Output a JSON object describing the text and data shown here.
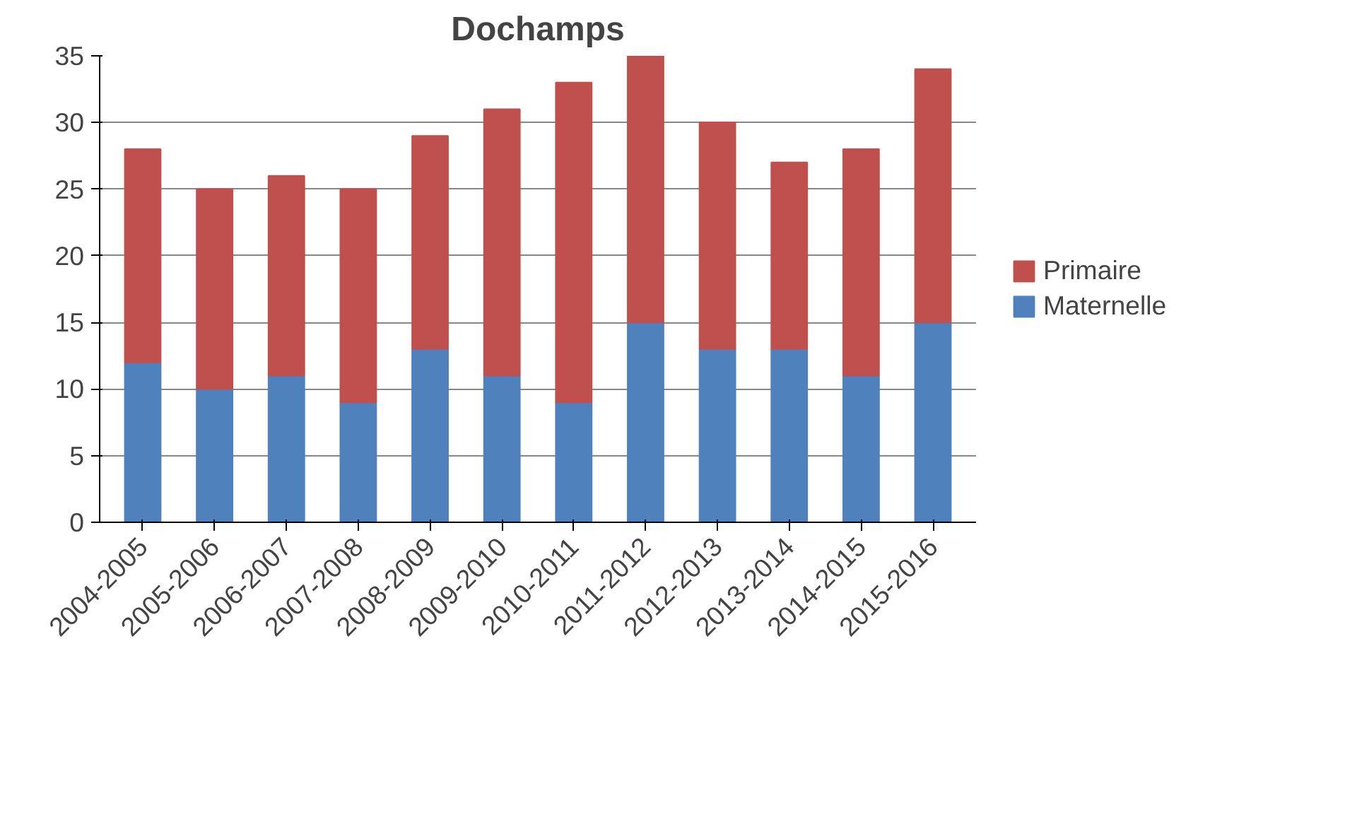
{
  "chart_data": {
    "type": "bar",
    "title": "Dochamps",
    "stacked": true,
    "categories": [
      "2004-2005",
      "2005-2006",
      "2006-2007",
      "2007-2008",
      "2008-2009",
      "2009-2010",
      "2010-2011",
      "2011-2012",
      "2012-2013",
      "2013-2014",
      "2014-2015",
      "2015-2016"
    ],
    "series": [
      {
        "name": "Maternelle",
        "color": "#4f81bd",
        "values": [
          12,
          10,
          11,
          9,
          13,
          11,
          9,
          15,
          13,
          13,
          11,
          15
        ]
      },
      {
        "name": "Primaire",
        "color": "#c0504d",
        "values": [
          16,
          15,
          15,
          16,
          16,
          20,
          24,
          20,
          17,
          14,
          17,
          19
        ]
      }
    ],
    "ylim": [
      0,
      35
    ],
    "yticks": [
      0,
      5,
      10,
      15,
      20,
      25,
      30,
      35
    ],
    "grid": "y",
    "legend": "right"
  }
}
